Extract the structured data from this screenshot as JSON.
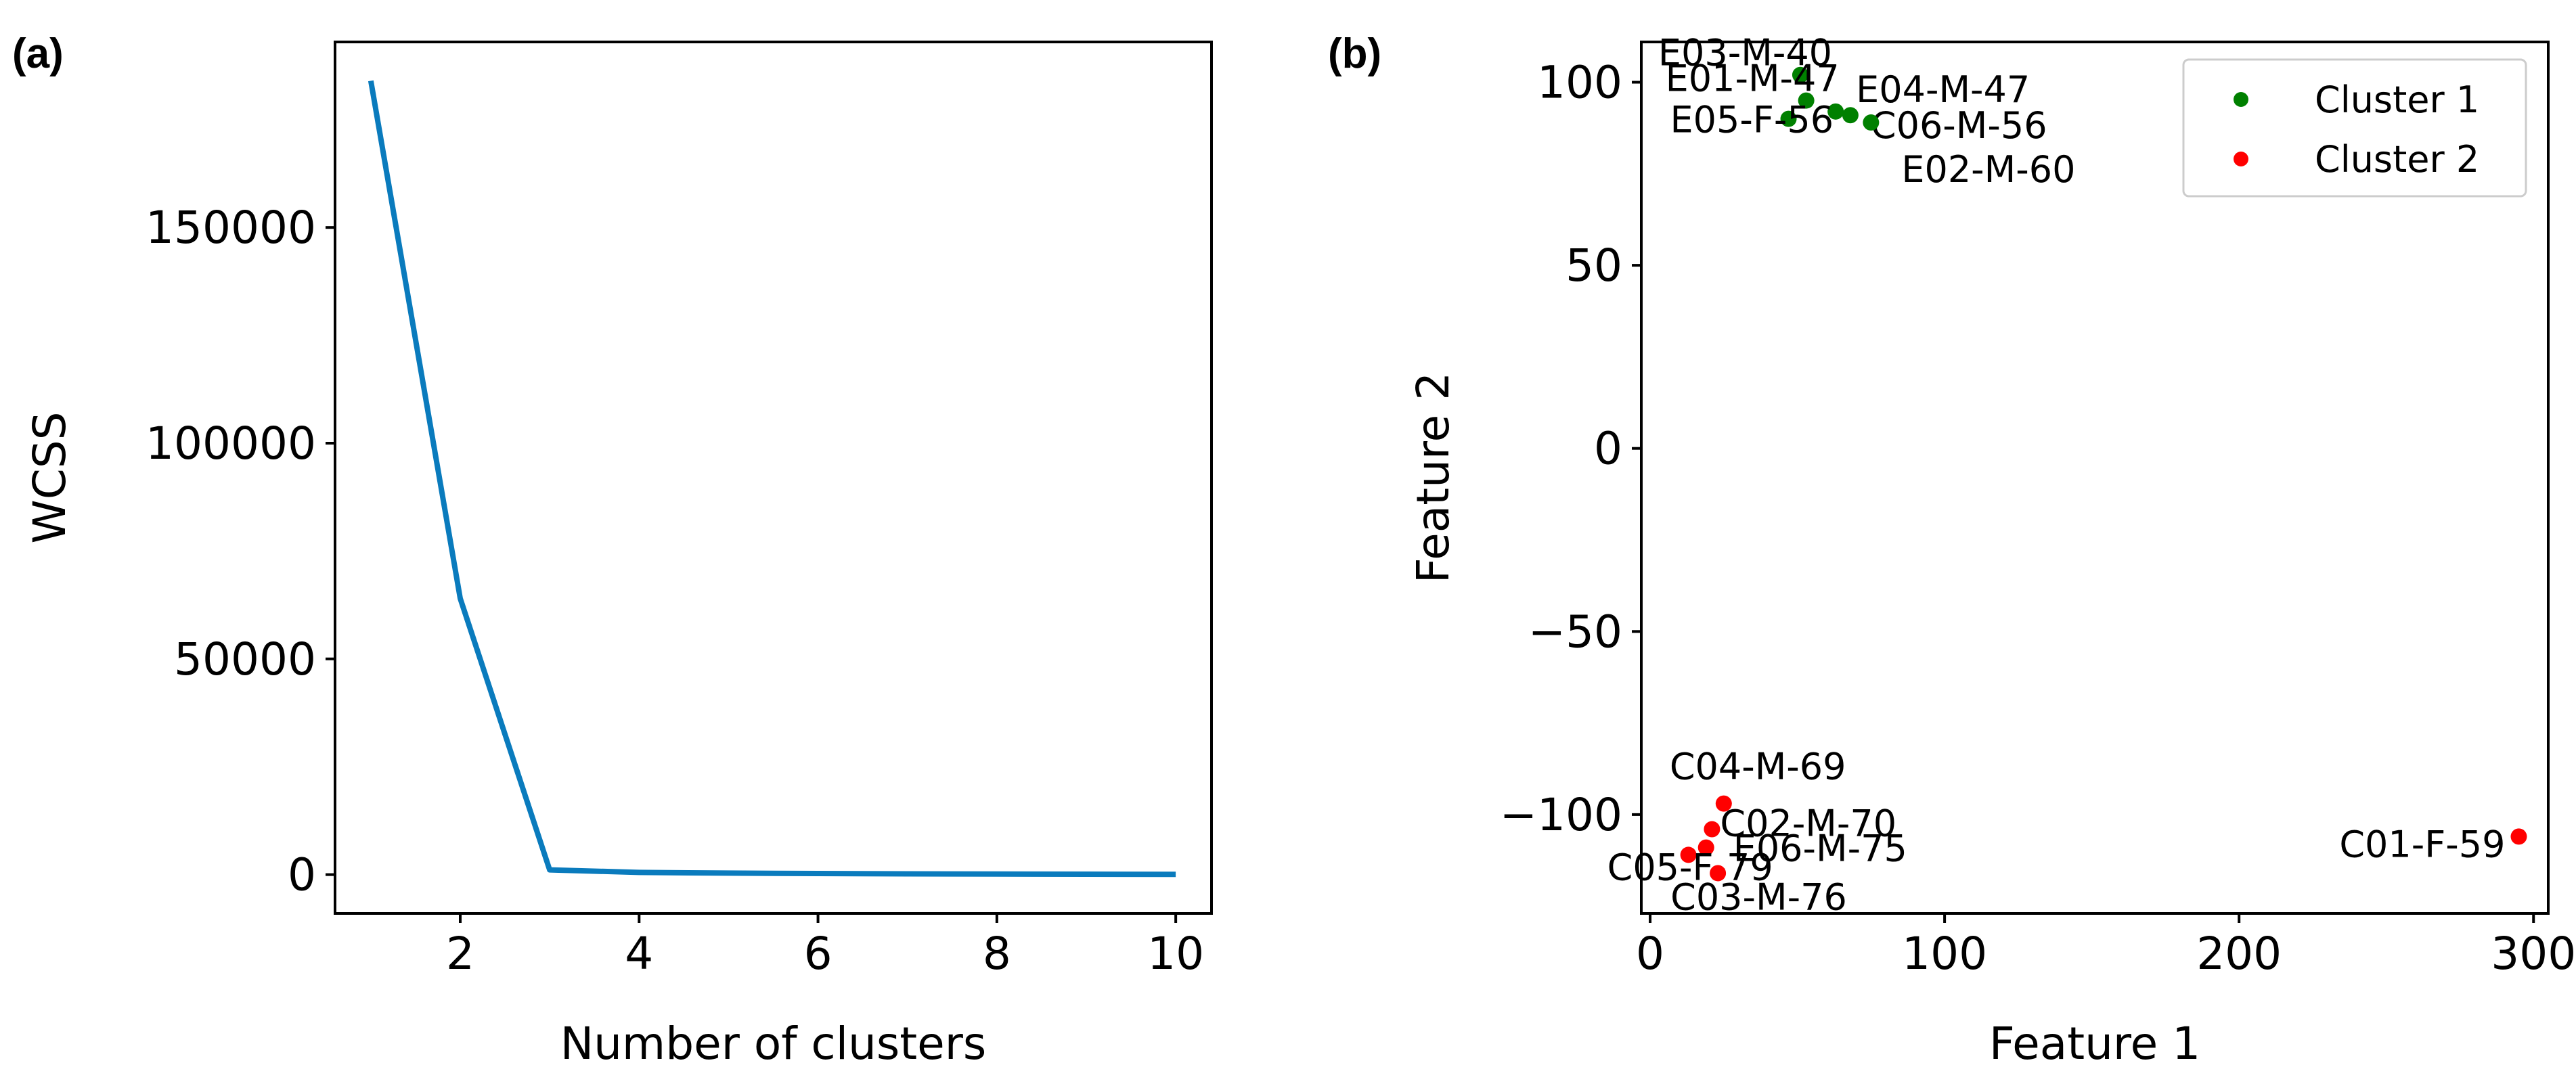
{
  "panels": {
    "a": {
      "label": "(a)"
    },
    "b": {
      "label": "(b)"
    }
  },
  "colors": {
    "elbow_line": "#0a7bbd",
    "cluster_1": "#008000",
    "cluster_2": "#ff0000",
    "axes": "#000000",
    "legend_border": "#cccccc"
  },
  "chart_data": [
    {
      "type": "line",
      "title": "",
      "xlabel": "Number of clusters",
      "ylabel": "WCSS",
      "xlim": [
        0.6,
        10.4
      ],
      "ylim": [
        -9000,
        193000
      ],
      "xticks": [
        2,
        4,
        6,
        8,
        10
      ],
      "yticks": [
        0,
        50000,
        100000,
        150000
      ],
      "grid": false,
      "series": [
        {
          "name": "WCSS",
          "x": [
            1,
            2,
            3,
            4,
            5,
            6,
            7,
            8,
            9,
            10
          ],
          "y": [
            184000,
            64000,
            1100,
            500,
            350,
            250,
            180,
            130,
            90,
            60
          ]
        }
      ]
    },
    {
      "type": "scatter",
      "title": "",
      "xlabel": "Feature 1",
      "ylabel": "Feature 2",
      "xlim": [
        -3,
        305
      ],
      "ylim": [
        -127,
        111
      ],
      "xticks": [
        0,
        100,
        200,
        300
      ],
      "yticks": [
        -100,
        -50,
        0,
        50,
        100
      ],
      "grid": false,
      "legend_position": "top-right",
      "series": [
        {
          "name": "Cluster 1",
          "points": [
            {
              "id": "E03-M-40",
              "x": 51,
              "y": 102
            },
            {
              "id": "E01-M-47",
              "x": 53,
              "y": 95
            },
            {
              "id": "E04-M-47",
              "x": 63,
              "y": 92
            },
            {
              "id": "E05-F-56",
              "x": 47,
              "y": 90
            },
            {
              "id": "C06-M-56",
              "x": 68,
              "y": 91
            },
            {
              "id": "E02-M-60",
              "x": 75,
              "y": 89
            }
          ]
        },
        {
          "name": "Cluster 2",
          "points": [
            {
              "id": "C04-M-69",
              "x": 25,
              "y": -97
            },
            {
              "id": "C02-M-70",
              "x": 21,
              "y": -104
            },
            {
              "id": "E06-M-75",
              "x": 19,
              "y": -109
            },
            {
              "id": "C05-F-79",
              "x": 13,
              "y": -111
            },
            {
              "id": "C03-M-76",
              "x": 23,
              "y": -116
            },
            {
              "id": "C01-F-59",
              "x": 295,
              "y": -106
            }
          ]
        }
      ]
    }
  ]
}
